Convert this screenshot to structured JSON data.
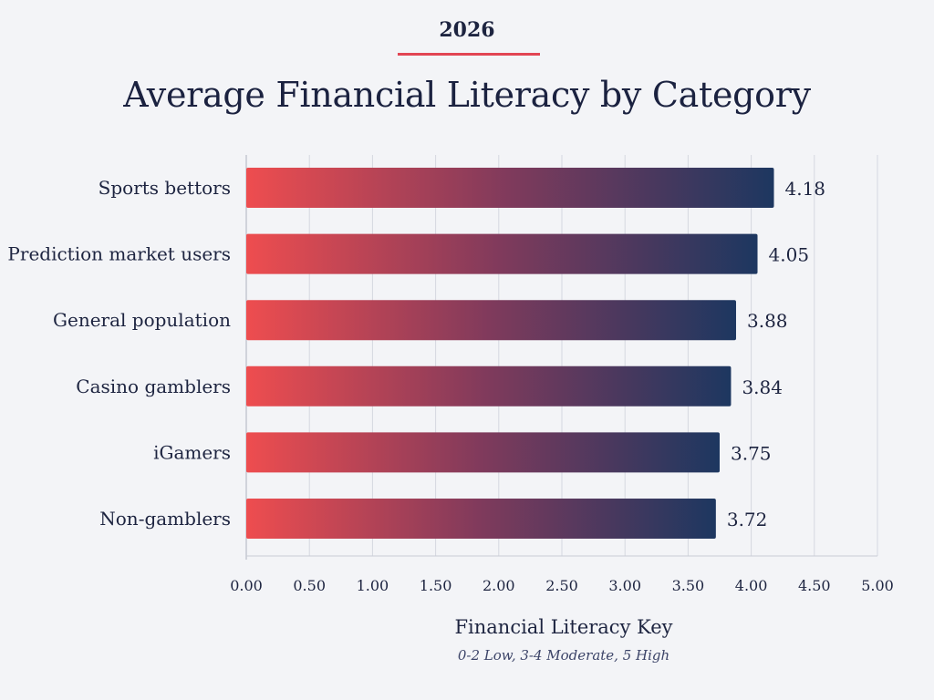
{
  "header": {
    "year": "2026",
    "title": "Average Financial Literacy by Category"
  },
  "colors": {
    "bar_start": "#ee4d4f",
    "bar_mid": "#7f3a5c",
    "bar_end": "#1d3760",
    "accent_rule": "#e24553",
    "grid": "#d5d8e0",
    "text": "#1d2440"
  },
  "chart_data": {
    "type": "bar",
    "orientation": "horizontal",
    "title": "Average Financial Literacy by Category",
    "categories": [
      "Sports bettors",
      "Prediction market users",
      "General population",
      "Casino gamblers",
      "iGamers",
      "Non-gamblers"
    ],
    "values": [
      4.18,
      4.05,
      3.88,
      3.84,
      3.75,
      3.72
    ],
    "data_labels": [
      "4.18",
      "4.05",
      "3.88",
      "3.84",
      "3.75",
      "3.72"
    ],
    "xlim": [
      0,
      5
    ],
    "xticks": [
      "0.00",
      "0.50",
      "1.00",
      "1.50",
      "2.00",
      "2.50",
      "3.00",
      "3.50",
      "4.00",
      "4.50",
      "5.00"
    ],
    "xlabel": "Financial Literacy Key",
    "xlabel_note": "0-2 Low, 3-4 Moderate, 5 High",
    "grid": "vertical",
    "legend": "none"
  }
}
